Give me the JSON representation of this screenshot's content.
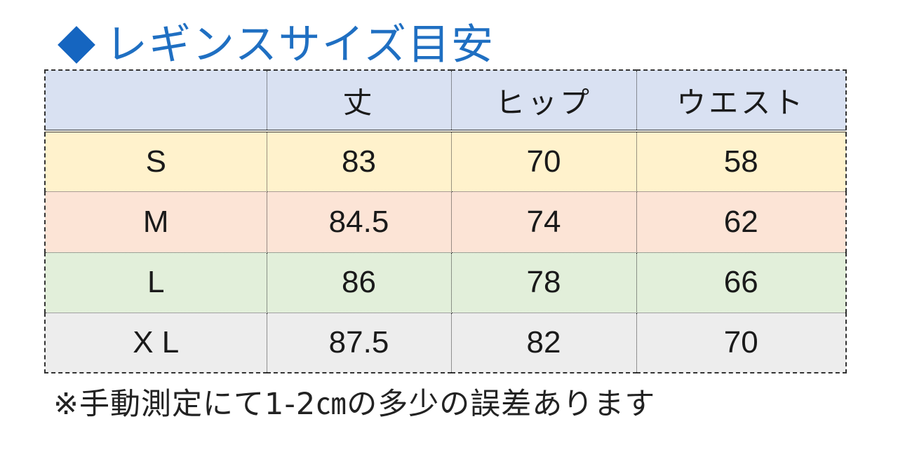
{
  "title": {
    "icon": "diamond-icon",
    "icon_color": "#1565c0",
    "text": "レギンスサイズ目安",
    "color": "#1f6fc2"
  },
  "table": {
    "headers": [
      "",
      "丈",
      "ヒップ",
      "ウエスト"
    ],
    "header_bg": "#d9e1f2",
    "rows": [
      {
        "size": "S",
        "length": "83",
        "hip": "70",
        "waist": "58",
        "bg": "#fff2cc"
      },
      {
        "size": "M",
        "length": "84.5",
        "hip": "74",
        "waist": "62",
        "bg": "#fce4d6"
      },
      {
        "size": "L",
        "length": "86",
        "hip": "78",
        "waist": "66",
        "bg": "#e2efda"
      },
      {
        "size": "X L",
        "length": "87.5",
        "hip": "82",
        "waist": "70",
        "bg": "#ededed"
      }
    ]
  },
  "note": "※手動測定にて1-2㎝の多少の誤差あります"
}
